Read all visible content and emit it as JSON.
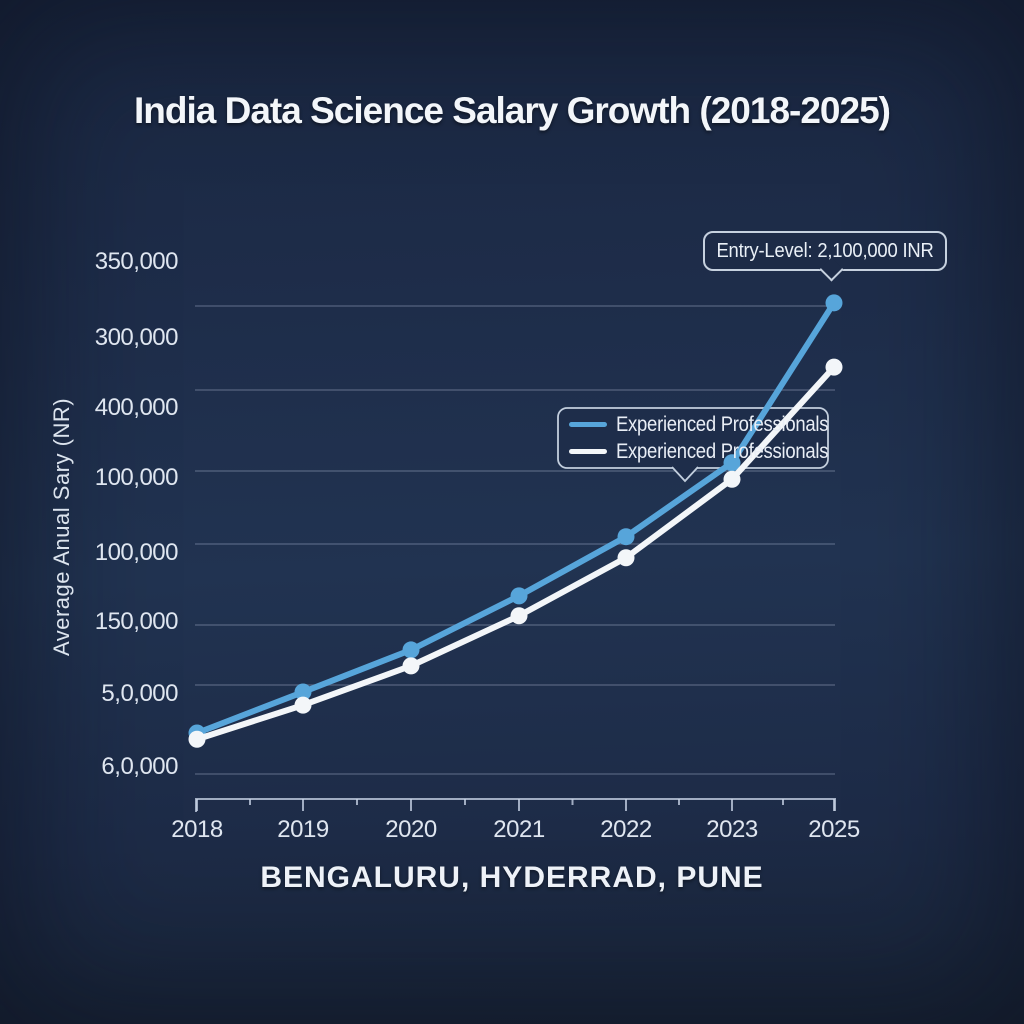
{
  "title": "India Data Science Salary Growth (2018-2025)",
  "subtitle": "BENGALURU, HYDERRAD, PUNE",
  "annotation": {
    "text": "Entry-Level: 2,100,000 INR"
  },
  "legend": {
    "items": [
      {
        "label": "Experienced Professionals",
        "color": "#57a5da"
      },
      {
        "label": "Experienced Professionals",
        "color": "#f3f6f9"
      }
    ]
  },
  "y_axis": {
    "title": "Average Anual Sary (NR)",
    "tick_labels": [
      "350,000",
      "300,000",
      "400,000",
      "100,000",
      "100,000",
      "150,000",
      "5,0,000",
      "6,0,000"
    ]
  },
  "x_axis": {
    "tick_labels": [
      "2018",
      "2019",
      "2020",
      "2021",
      "2022",
      "2023",
      "2025"
    ]
  },
  "chart_data": {
    "type": "line",
    "title": "India Data Science Salary Growth (2018-2025)",
    "xlabel": "BENGALURU, HYDERRAD, PUNE",
    "ylabel": "Average Anual Sary (NR)",
    "categories": [
      "2018",
      "2019",
      "2020",
      "2021",
      "2022",
      "2023",
      "2025"
    ],
    "series": [
      {
        "name": "Experienced Professionals",
        "color": "#57a5da",
        "marker": "circle",
        "values": [
          11.6,
          18.8,
          26.2,
          35.7,
          46.1,
          59.1,
          87.2
        ]
      },
      {
        "name": "Experienced Professionals",
        "color": "#f3f6f9",
        "marker": "circle",
        "values": [
          10.5,
          16.5,
          23.4,
          32.2,
          42.4,
          56.2,
          75.9
        ]
      }
    ],
    "value_scale": "percent-of-plot-height",
    "y_tick_labels": [
      "350,000",
      "300,000",
      "400,000",
      "100,000",
      "100,000",
      "150,000",
      "5,0,000",
      "6,0,000"
    ],
    "annotation": "Entry-Level: 2,100,000 INR",
    "grid": "horizontal",
    "legend_position": "center-right"
  }
}
